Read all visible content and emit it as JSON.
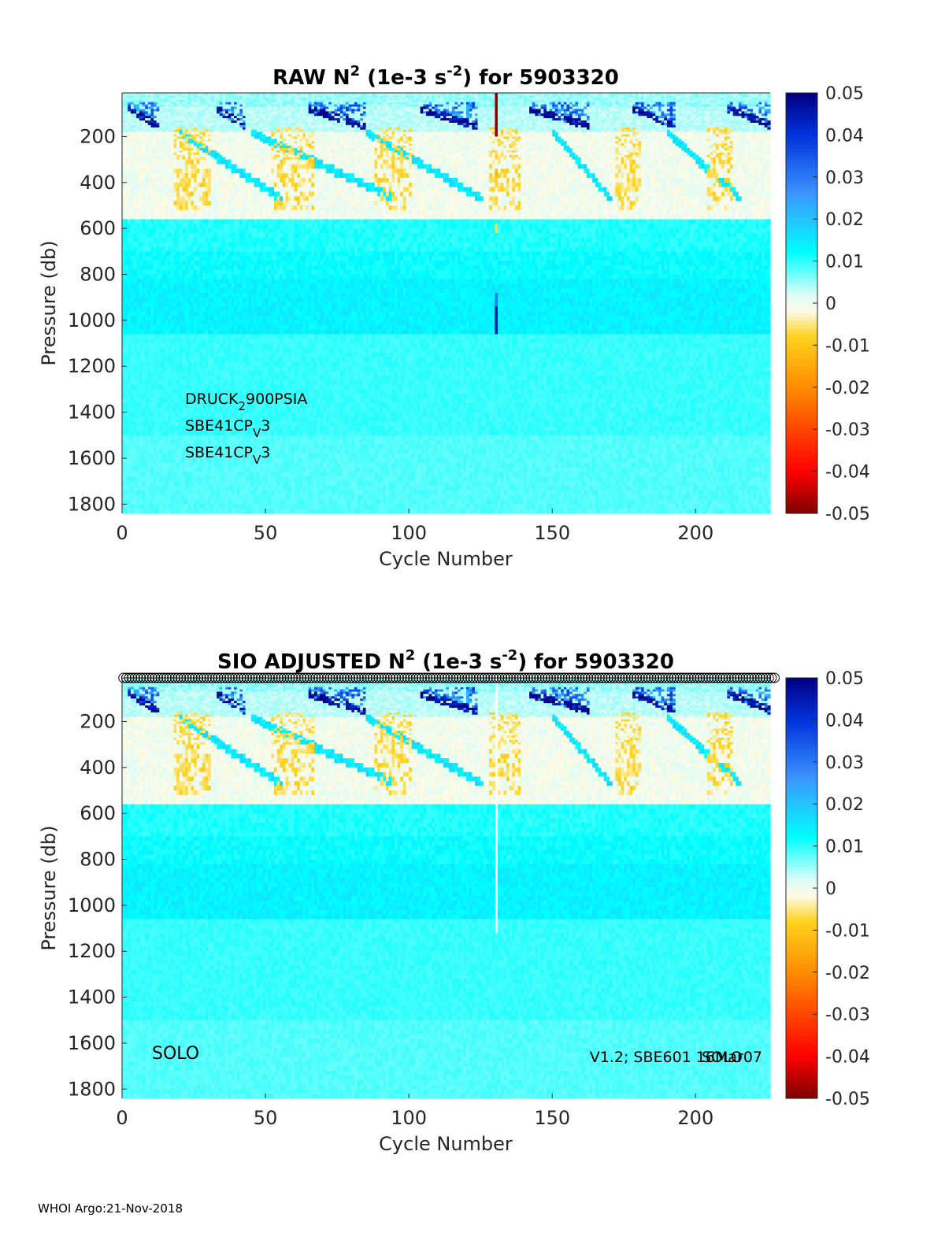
{
  "colorbar": {
    "ticks": [
      "0.05",
      "0.04",
      "0.03",
      "0.02",
      "0.01",
      "0",
      "-0.01",
      "-0.02",
      "-0.03",
      "-0.04",
      "-0.05"
    ],
    "range": [
      -0.05,
      0.05
    ]
  },
  "colors": {
    "colormap_stops": [
      "#7f0000",
      "#ff0000",
      "#ff8c00",
      "#ffd21e",
      "#fffbe6",
      "#dcfcf6",
      "#00ffff",
      "#3c96ff",
      "#0032dc",
      "#00007f"
    ],
    "axis": "#262626"
  },
  "footer": "WHOI Argo:21-Nov-2018",
  "chart_data": [
    {
      "type": "heatmap",
      "title_parts": {
        "a": "RAW N",
        "sup1": "2",
        "b": " (1e-3 s",
        "sup2": "-2",
        "c": ") for 5903320"
      },
      "xlabel": "Cycle Number",
      "ylabel": "Pressure (db)",
      "xlim": [
        0,
        226
      ],
      "ylim": [
        1840,
        10
      ],
      "xticks": [
        "0",
        "50",
        "100",
        "150",
        "200"
      ],
      "yticks": [
        "200",
        "400",
        "600",
        "800",
        "1000",
        "1200",
        "1400",
        "1600",
        "1800"
      ],
      "sensors": [
        {
          "base": "DRUCK",
          "sub": "2",
          "rest": "900PSIA"
        },
        {
          "base": "SBE41CP",
          "sub": "V",
          "rest": "3"
        },
        {
          "base": "SBE41CP",
          "sub": "V",
          "rest": "3"
        }
      ],
      "anomaly_cycle": 130
    },
    {
      "type": "heatmap",
      "title_parts": {
        "a": "SIO  ADJUSTED N",
        "sup1": "2",
        "b": " (1e-3 s",
        "sup2": "-2",
        "c": ") for 5903320"
      },
      "xlabel": "Cycle Number",
      "ylabel": "Pressure (db)",
      "xlim": [
        0,
        226
      ],
      "ylim": [
        1840,
        10
      ],
      "xticks": [
        "0",
        "50",
        "100",
        "150",
        "200"
      ],
      "yticks": [
        "200",
        "400",
        "600",
        "800",
        "1000",
        "1200",
        "1400",
        "1600",
        "1800"
      ],
      "annotation_left": "SOLO",
      "annotation_right": "V1.2; SBE601 16Mar07",
      "annotation_overlap": "SOLO",
      "missing_cycle": 130,
      "qc_marker": "circle"
    }
  ]
}
